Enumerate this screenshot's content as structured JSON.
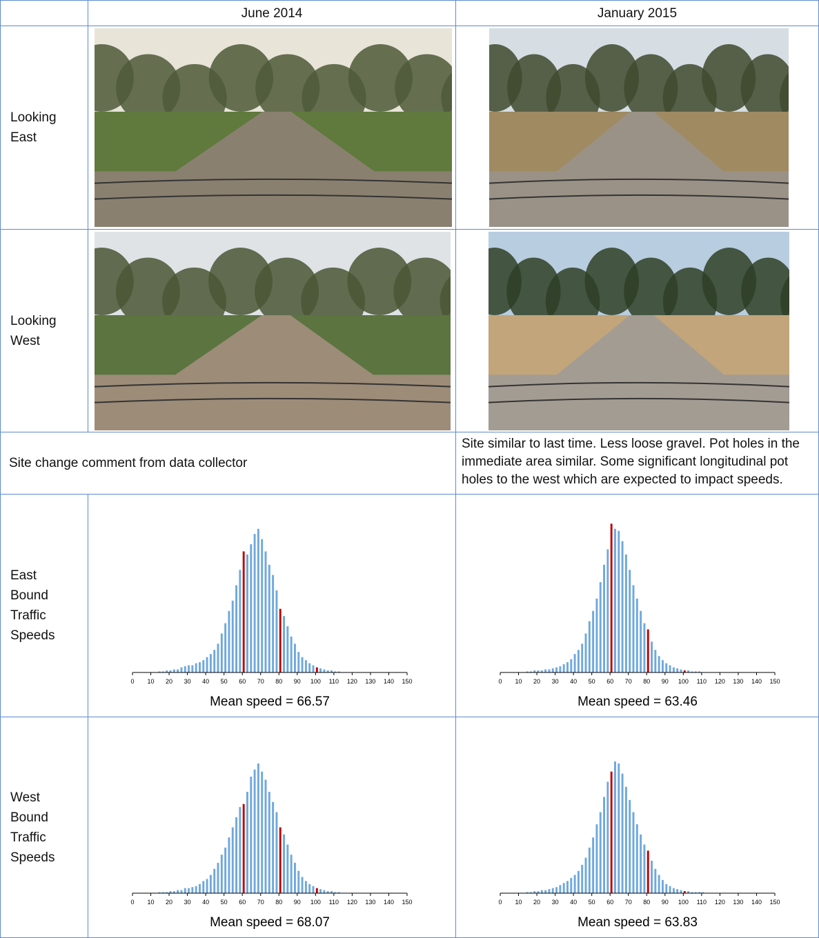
{
  "table": {
    "header": [
      "June 2014",
      "January 2015"
    ],
    "photo_rows": [
      "Looking East",
      "Looking West"
    ],
    "comment": {
      "label": "Site change comment from data collector",
      "text": "Site similar to last time. Less loose gravel. Pot holes in the immediate area similar. Some significant longitudinal pot holes to the west which are expected to impact speeds."
    },
    "chart_rows": [
      "East Bound Traffic Speeds",
      "West Bound Traffic Speeds"
    ]
  },
  "chart_data": [
    {
      "type": "histogram",
      "caption": "Mean speed = 66.57",
      "color": "#6fa8dc",
      "highlight_color": "#c00000",
      "highlight_bins": [
        60,
        80,
        100
      ],
      "bins": [
        14,
        16,
        18,
        20,
        22,
        24,
        26,
        28,
        30,
        32,
        34,
        36,
        38,
        40,
        42,
        44,
        46,
        48,
        50,
        52,
        54,
        56,
        58,
        60,
        62,
        64,
        66,
        68,
        70,
        72,
        74,
        76,
        78,
        80,
        82,
        84,
        86,
        88,
        90,
        92,
        94,
        96,
        98,
        100,
        102,
        104,
        106,
        108,
        110,
        112,
        114
      ],
      "values": [
        1,
        1,
        2,
        2,
        3,
        3,
        5,
        6,
        7,
        7,
        9,
        10,
        12,
        15,
        18,
        22,
        28,
        38,
        48,
        60,
        70,
        85,
        100,
        118,
        115,
        125,
        135,
        140,
        130,
        118,
        105,
        95,
        80,
        62,
        55,
        45,
        35,
        28,
        20,
        15,
        12,
        9,
        7,
        5,
        4,
        3,
        2,
        2,
        1,
        1
      ],
      "xlim": [
        0,
        150
      ],
      "xticks": [
        0,
        10,
        20,
        30,
        40,
        50,
        60,
        70,
        80,
        90,
        100,
        110,
        120,
        130,
        140,
        150
      ],
      "ylim": [
        0,
        160
      ]
    },
    {
      "type": "histogram",
      "caption": "Mean speed = 63.46",
      "color": "#6fa8dc",
      "highlight_color": "#c00000",
      "highlight_bins": [
        60,
        80,
        100
      ],
      "bins": [
        14,
        16,
        18,
        20,
        22,
        24,
        26,
        28,
        30,
        32,
        34,
        36,
        38,
        40,
        42,
        44,
        46,
        48,
        50,
        52,
        54,
        56,
        58,
        60,
        62,
        64,
        66,
        68,
        70,
        72,
        74,
        76,
        78,
        80,
        82,
        84,
        86,
        88,
        90,
        92,
        94,
        96,
        98,
        100,
        102,
        104,
        106,
        108,
        110,
        112,
        114
      ],
      "values": [
        1,
        1,
        2,
        2,
        2,
        3,
        3,
        4,
        5,
        6,
        8,
        10,
        13,
        18,
        22,
        28,
        38,
        50,
        60,
        72,
        88,
        105,
        120,
        145,
        140,
        138,
        128,
        115,
        100,
        85,
        72,
        60,
        48,
        42,
        30,
        22,
        16,
        12,
        9,
        7,
        5,
        4,
        3,
        2,
        2,
        1,
        1,
        1,
        0,
        0
      ],
      "xlim": [
        0,
        150
      ],
      "xticks": [
        0,
        10,
        20,
        30,
        40,
        50,
        60,
        70,
        80,
        90,
        100,
        110,
        120,
        130,
        140,
        150
      ],
      "ylim": [
        0,
        160
      ]
    },
    {
      "type": "histogram",
      "caption": "Mean speed = 68.07",
      "color": "#6fa8dc",
      "highlight_color": "#c00000",
      "highlight_bins": [
        60,
        80,
        100
      ],
      "bins": [
        14,
        16,
        18,
        20,
        22,
        24,
        26,
        28,
        30,
        32,
        34,
        36,
        38,
        40,
        42,
        44,
        46,
        48,
        50,
        52,
        54,
        56,
        58,
        60,
        62,
        64,
        66,
        68,
        70,
        72,
        74,
        76,
        78,
        80,
        82,
        84,
        86,
        88,
        90,
        92,
        94,
        96,
        98,
        100,
        102,
        104,
        106,
        108,
        110,
        112,
        114
      ],
      "values": [
        1,
        1,
        1,
        2,
        2,
        3,
        3,
        5,
        5,
        6,
        7,
        9,
        12,
        14,
        18,
        24,
        30,
        38,
        45,
        55,
        65,
        75,
        85,
        88,
        100,
        115,
        122,
        128,
        120,
        112,
        100,
        90,
        80,
        65,
        58,
        48,
        38,
        30,
        22,
        16,
        12,
        9,
        7,
        5,
        4,
        3,
        2,
        2,
        1,
        1
      ],
      "xlim": [
        0,
        150
      ],
      "xticks": [
        0,
        10,
        20,
        30,
        40,
        50,
        60,
        70,
        80,
        90,
        100,
        110,
        120,
        130,
        140,
        150
      ],
      "ylim": [
        0,
        160
      ]
    },
    {
      "type": "histogram",
      "caption": "Mean speed = 63.83",
      "color": "#6fa8dc",
      "highlight_color": "#c00000",
      "highlight_bins": [
        60,
        80,
        100
      ],
      "bins": [
        14,
        16,
        18,
        20,
        22,
        24,
        26,
        28,
        30,
        32,
        34,
        36,
        38,
        40,
        42,
        44,
        46,
        48,
        50,
        52,
        54,
        56,
        58,
        60,
        62,
        64,
        66,
        68,
        70,
        72,
        74,
        76,
        78,
        80,
        82,
        84,
        86,
        88,
        90,
        92,
        94,
        96,
        98,
        100,
        102,
        104,
        106,
        108,
        110,
        112,
        114
      ],
      "values": [
        1,
        1,
        2,
        2,
        3,
        3,
        4,
        5,
        6,
        8,
        10,
        12,
        15,
        18,
        22,
        28,
        35,
        45,
        55,
        68,
        80,
        95,
        110,
        120,
        130,
        128,
        118,
        105,
        92,
        80,
        68,
        58,
        48,
        42,
        32,
        24,
        18,
        13,
        9,
        7,
        5,
        4,
        3,
        2,
        2,
        1,
        1,
        1,
        1,
        0
      ],
      "xlim": [
        0,
        150
      ],
      "xticks": [
        0,
        10,
        20,
        30,
        40,
        50,
        60,
        70,
        80,
        90,
        100,
        110,
        120,
        130,
        140,
        150
      ],
      "ylim": [
        0,
        160
      ]
    }
  ]
}
